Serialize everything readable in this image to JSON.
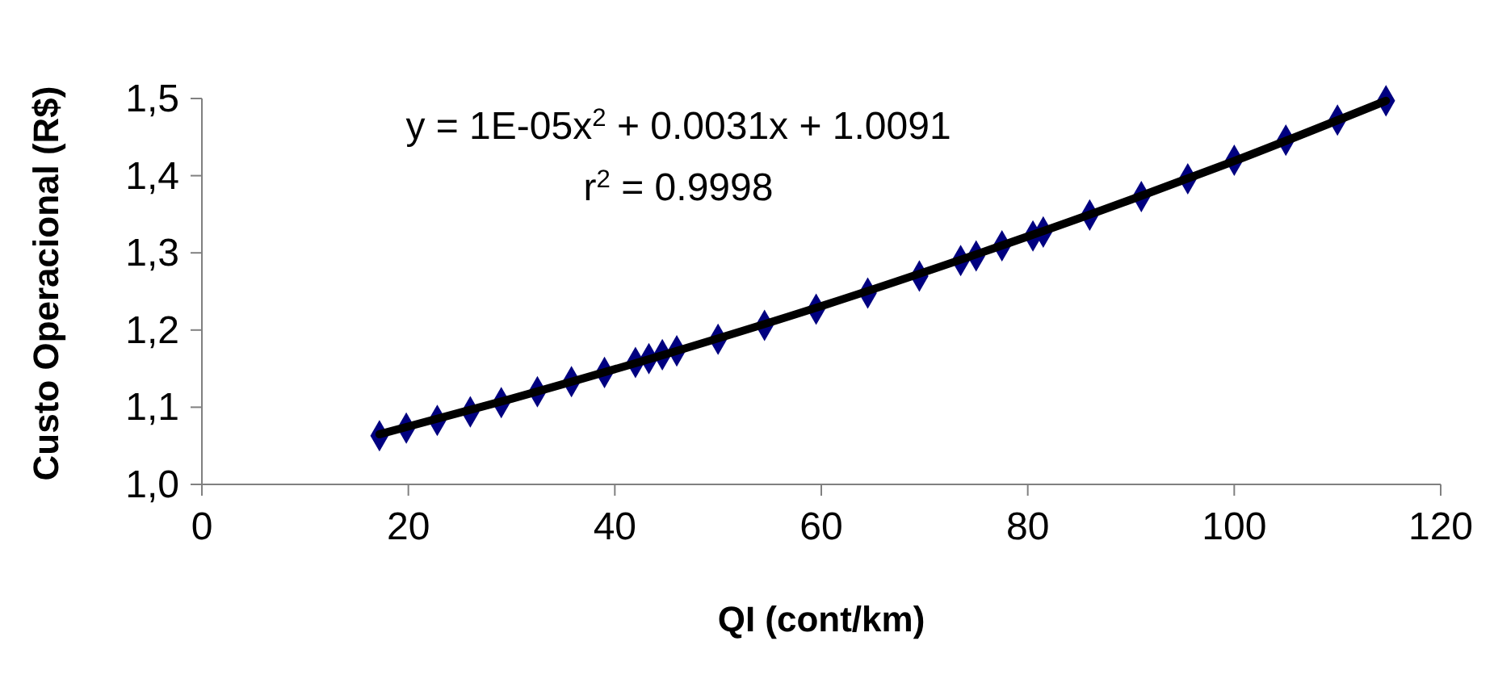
{
  "chart_data": {
    "type": "scatter",
    "xlabel": "QI (cont/km)",
    "ylabel": "Custo Operacional (R$)",
    "annotations": [
      "y = 1E-05x$^{2}$ + 0.0031x + 1.0091",
      "r$^{2}$ = 0.9998"
    ],
    "marker": "diamond",
    "grid": false,
    "xlim": [
      0,
      120
    ],
    "xticks": [
      0,
      20,
      40,
      60,
      80,
      100,
      120
    ],
    "ylim": [
      1,
      1.5
    ],
    "yticks": [
      {
        "value": 1,
        "label": "1,0"
      },
      {
        "value": 1.1,
        "label": "1,1"
      },
      {
        "value": 1.2,
        "label": "1,2"
      },
      {
        "value": 1.3,
        "label": "1,3"
      },
      {
        "value": 1.4,
        "label": "1,4"
      },
      {
        "value": 1.5,
        "label": "1,5"
      }
    ],
    "series": [
      {
        "color": "#000080",
        "x": [
          17.2,
          19.8,
          22.8,
          26,
          29,
          32.5,
          35.8,
          39,
          42,
          43.3,
          44.6,
          46,
          50,
          54.5,
          59.5,
          64.5,
          69.5,
          73.5,
          75,
          77.5,
          80.5,
          81.5,
          86,
          91,
          95.5,
          100,
          105,
          110,
          114.7
        ],
        "values": [
          1.063,
          1.073,
          1.083,
          1.094,
          1.106,
          1.12,
          1.133,
          1.145,
          1.158,
          1.163,
          1.168,
          1.173,
          1.188,
          1.206,
          1.227,
          1.248,
          1.27,
          1.29,
          1.296,
          1.309,
          1.322,
          1.327,
          1.349,
          1.373,
          1.396,
          1.42,
          1.446,
          1.472,
          1.497
        ]
      },
      {
        "type": "line",
        "color": "#000000",
        "marker": "none",
        "line_style": "solid",
        "x": [
          17.2,
          30,
          45,
          60,
          75,
          90,
          100,
          114.7
        ],
        "values": [
          1.065,
          1.111,
          1.169,
          1.231,
          1.298,
          1.369,
          1.419,
          1.497
        ]
      }
    ]
  }
}
